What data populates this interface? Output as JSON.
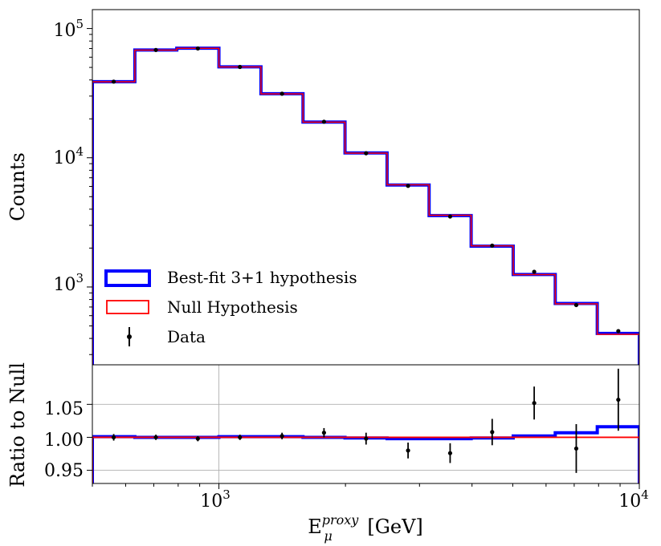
{
  "chart_data": [
    {
      "type": "step-histogram",
      "panel": "main",
      "ylabel": "Counts",
      "yscale": "log",
      "ylim": [
        250,
        140000
      ],
      "xscale": "log",
      "xlim": [
        500,
        10000
      ],
      "bin_edges": [
        500,
        631,
        794,
        1000,
        1259,
        1585,
        1995,
        2512,
        3162,
        3981,
        5012,
        6310,
        7943,
        10000
      ],
      "series": [
        {
          "name": "Best-fit 3+1 hypothesis",
          "color": "#0000ff",
          "values": [
            38800,
            68200,
            70400,
            50500,
            31300,
            18900,
            10900,
            6150,
            3570,
            2070,
            1250,
            745,
            437
          ]
        },
        {
          "name": "Null Hypothesis",
          "color": "#ff0000",
          "values": [
            38700,
            68100,
            70300,
            50400,
            31200,
            18850,
            10860,
            6170,
            3590,
            2080,
            1247,
            740,
            430
          ]
        }
      ],
      "data_points": {
        "name": "Data",
        "color": "#000000",
        "x": [
          562,
          708,
          891,
          1122,
          1413,
          1778,
          2239,
          2818,
          3548,
          4467,
          5623,
          7079,
          8913
        ],
        "y": [
          38800,
          68200,
          70100,
          50400,
          31300,
          19000,
          10840,
          6060,
          3510,
          2090,
          1312,
          725,
          456
        ]
      },
      "legend": [
        "Best-fit 3+1 hypothesis",
        "Null Hypothesis",
        "Data"
      ],
      "legend_position": "lower-left"
    },
    {
      "type": "step-histogram",
      "panel": "ratio",
      "ylabel": "Ratio to Null",
      "xlabel_base": "E",
      "xlabel_sub": "μ",
      "xlabel_sup": "proxy",
      "xlabel_unit": "[GeV]",
      "ylim": [
        0.93,
        1.11
      ],
      "yticks": [
        0.95,
        1.0,
        1.05
      ],
      "ytick_labels": [
        "0.95",
        "1.00",
        "1.05"
      ],
      "xticks": [
        1000,
        10000
      ],
      "xtick_base": "10",
      "xtick_exps": [
        "3",
        "4"
      ],
      "grid": true,
      "bin_edges": [
        500,
        631,
        794,
        1000,
        1259,
        1585,
        1995,
        2512,
        3162,
        3981,
        5012,
        6310,
        7943,
        10000
      ],
      "series": [
        {
          "name": "Best-fit 3+1 hypothesis",
          "color": "#0000ff",
          "values": [
            1.001,
            1.0,
            1.0,
            1.001,
            1.001,
            1.0,
            0.999,
            0.998,
            0.998,
            0.999,
            1.002,
            1.007,
            1.016
          ]
        },
        {
          "name": "Null Hypothesis",
          "color": "#ff0000",
          "values": [
            1.0,
            1.0,
            1.0,
            1.0,
            1.0,
            1.0,
            1.0,
            1.0,
            1.0,
            1.0,
            1.0,
            1.0,
            1.0
          ]
        }
      ],
      "data_points": {
        "name": "Data",
        "x": [
          562,
          708,
          891,
          1122,
          1413,
          1778,
          2239,
          2818,
          3548,
          4467,
          5623,
          7079,
          8913
        ],
        "y": [
          1.0,
          1.0,
          0.998,
          1.0,
          1.002,
          1.007,
          0.998,
          0.98,
          0.976,
          1.008,
          1.052,
          0.983,
          1.057
        ],
        "err": [
          0.005,
          0.004,
          0.004,
          0.004,
          0.005,
          0.007,
          0.009,
          0.012,
          0.015,
          0.02,
          0.025,
          0.037,
          0.047
        ]
      }
    }
  ],
  "main_yticks": [
    {
      "value": 1000,
      "base": "10",
      "exp": "3"
    },
    {
      "value": 10000,
      "base": "10",
      "exp": "4"
    },
    {
      "value": 100000,
      "base": "10",
      "exp": "5"
    }
  ]
}
